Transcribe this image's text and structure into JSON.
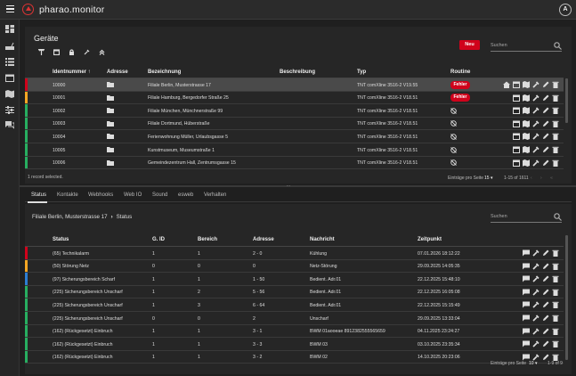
{
  "app": {
    "title": "pharao.monitor",
    "user_initial": "A"
  },
  "sidebar": {
    "items": [
      "dashboard-icon",
      "router-icon",
      "list-icon",
      "calendar-icon",
      "map-icon",
      "sliders-icon",
      "chat-icon"
    ]
  },
  "devices": {
    "title": "Geräte",
    "new_label": "Neu",
    "search_placeholder": "Suchen",
    "toolbar_icons": [
      "tower-icon",
      "calendar-icon",
      "lock-icon",
      "wrench-icon",
      "collapse-icon"
    ],
    "columns": [
      "Identnummer ↑",
      "Adresse",
      "Bezeichnung",
      "Beschreibung",
      "Typ",
      "Routine"
    ],
    "colors": {
      "red": "#d0021b",
      "orange": "#f5a623",
      "green": "#27ae60",
      "selected": "#4a4a4a"
    },
    "rows": [
      {
        "id": "10000",
        "name": "Filiale Berlin, Musterstrasse 17",
        "desc": "",
        "type": "TNT comXline 3516-2 V19.55",
        "routine": "Fehler",
        "status": "red"
      },
      {
        "id": "10001",
        "name": "Filiale Hamburg, Bergedorfer Straße 25",
        "desc": "",
        "type": "TNT comXline 3516-2 V18.51",
        "routine": "Fehler",
        "status": "orange"
      },
      {
        "id": "10002",
        "name": "Filiale München, Münchnerstraße 99",
        "desc": "",
        "type": "TNT comXline 3516-2 V18.51",
        "routine": "",
        "status": "green"
      },
      {
        "id": "10003",
        "name": "Filiale Dortmund, Hüberstraße",
        "desc": "",
        "type": "TNT comXline 3516-2 V18.51",
        "routine": "",
        "status": "green"
      },
      {
        "id": "10004",
        "name": "Ferienwohnung Müller, Urlaubsgasse 5",
        "desc": "",
        "type": "TNT comXline 3516-2 V18.51",
        "routine": "",
        "status": "green"
      },
      {
        "id": "10005",
        "name": "Kunstmuseum, Museumstraße 1",
        "desc": "",
        "type": "TNT comXline 3516-2 V18.51",
        "routine": "",
        "status": "green"
      },
      {
        "id": "10006",
        "name": "Gemeindezentrum Hall, Zentrumsgasse 15",
        "desc": "",
        "type": "TNT comXline 3516-2 V18.51",
        "routine": "",
        "status": "green"
      }
    ],
    "selected_text": "1 record selected.",
    "per_page_label": "Einträge pro Seite",
    "per_page": "15",
    "range": "1-15 of 1611"
  },
  "tabs": [
    "Status",
    "Kontakte",
    "Webhooks",
    "Web IO",
    "Sound",
    "esweb",
    "Verhalten"
  ],
  "status": {
    "breadcrumb_device": "Filiale Berlin, Musterstrasse 17",
    "breadcrumb_page": "Status",
    "search_placeholder": "Suchen",
    "columns": [
      "Status",
      "G. ID",
      "Bereich",
      "Adresse",
      "Nachricht",
      "Zeitpunkt"
    ],
    "colors": {
      "red": "#d0021b",
      "orange": "#f5a623",
      "blue": "#2d7dd2",
      "green": "#27ae60"
    },
    "rows": [
      {
        "status": "(65) Technikalarm",
        "gid": "1",
        "bereich": "1",
        "adresse": "2 - 0",
        "msg": "Kühlung",
        "time": "07.01.2026 18:12:22",
        "color": "red"
      },
      {
        "status": "(50) Störung Netz",
        "gid": "0",
        "bereich": "0",
        "adresse": "0",
        "msg": "Netz-Störung",
        "time": "29.09.2025 14:05:35",
        "color": "orange"
      },
      {
        "status": "(97) Sicherungsbereich Scharf",
        "gid": "1",
        "bereich": "1",
        "adresse": "1 - 50",
        "msg": "Bedient. Adr.01",
        "time": "22.12.2025 15:48:10",
        "color": "blue"
      },
      {
        "status": "(225) Sicherungsbereich Unscharf",
        "gid": "1",
        "bereich": "2",
        "adresse": "5 - 56",
        "msg": "Bedient. Adr.01",
        "time": "22.12.2025 16:05:08",
        "color": "green"
      },
      {
        "status": "(225) Sicherungsbereich Unscharf",
        "gid": "1",
        "bereich": "3",
        "adresse": "6 - 64",
        "msg": "Bedient. Adr.01",
        "time": "22.12.2025 15:15:49",
        "color": "green"
      },
      {
        "status": "(225) Sicherungsbereich Unscharf",
        "gid": "0",
        "bereich": "0",
        "adresse": "2",
        "msg": "Unscharf",
        "time": "29.09.2025 13:33:04",
        "color": "green"
      },
      {
        "status": "(162) (Rückgesetzt) Einbruch",
        "gid": "1",
        "bereich": "1",
        "adresse": "3 - 1",
        "msg": "BWM 01aooeae 8912382555565659",
        "time": "04.11.2025 23:24:27",
        "color": "green"
      },
      {
        "status": "(162) (Rückgesetzt) Einbruch",
        "gid": "1",
        "bereich": "1",
        "adresse": "3 - 3",
        "msg": "BWM 03",
        "time": "03.10.2025 23:35:34",
        "color": "green"
      },
      {
        "status": "(162) (Rückgesetzt) Einbruch",
        "gid": "1",
        "bereich": "1",
        "adresse": "3 - 2",
        "msg": "BWM 02",
        "time": "14.10.2025 20:23:06",
        "color": "green"
      }
    ],
    "per_page_label": "Einträge pro Seite",
    "per_page": "10",
    "range": "1-9 of 9"
  }
}
